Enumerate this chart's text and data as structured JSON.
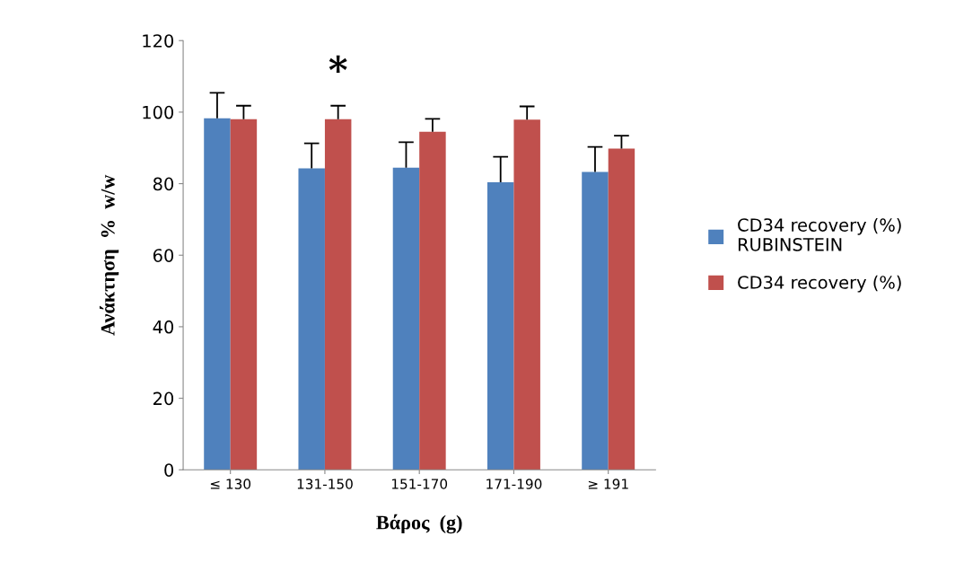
{
  "chart_data": {
    "type": "bar",
    "xlabel": "Βάρος  (g)",
    "ylabel": "Ανάκτηση  %  w/w",
    "categories": [
      "≤ 130",
      "131-150",
      "151-170",
      "171-190",
      "≥ 191"
    ],
    "series": [
      {
        "name": "CD34 recovery (%) RUBINSTEIN",
        "color": "#4f81bd",
        "values": [
          98.3,
          84.3,
          84.5,
          80.4,
          83.3
        ],
        "errors": [
          [
            98.3,
            105.4
          ],
          [
            84.3,
            91.3
          ],
          [
            84.5,
            91.6
          ],
          [
            80.4,
            87.5
          ],
          [
            83.3,
            90.3
          ]
        ]
      },
      {
        "name": "CD34 recovery (%)",
        "color": "#c0504d",
        "values": [
          98.0,
          98.0,
          94.5,
          97.9,
          89.8
        ],
        "errors": [
          [
            98.0,
            101.8
          ],
          [
            98.0,
            101.8
          ],
          [
            94.5,
            98.1
          ],
          [
            97.9,
            101.6
          ],
          [
            89.8,
            93.4
          ]
        ]
      }
    ],
    "annotations": [
      "*"
    ],
    "ylim": [
      0,
      120
    ],
    "yticks": [
      0,
      20,
      40,
      60,
      80,
      100,
      120
    ],
    "grid": false,
    "legend": "right"
  }
}
